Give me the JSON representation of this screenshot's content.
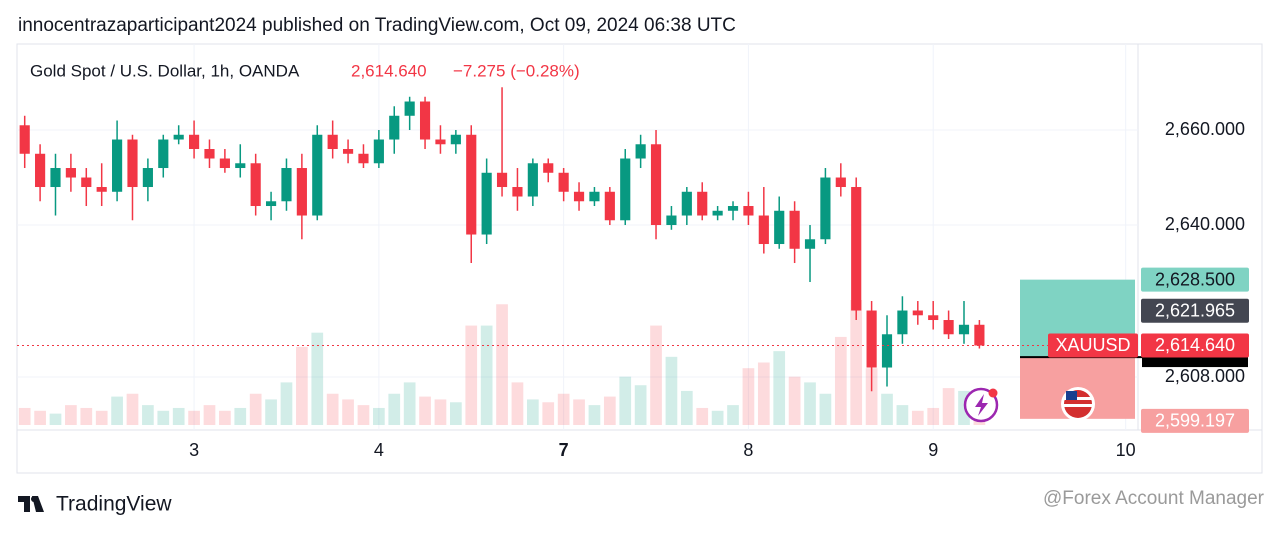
{
  "chart_data": {
    "type": "candlestick",
    "source": "innocentrazaparticipant2024 published on TradingView.com, Oct 09, 2024 06:38 UTC",
    "title": "Gold Spot / U.S. Dollar, 1h, OANDA",
    "change_label": "−7.275 (−0.28%)",
    "brand": "TradingView",
    "watermark": "@Forex Account Manager",
    "up_color": "#089981",
    "down_color": "#f23645",
    "xlim": [
      -0.5,
      72.3
    ],
    "xticks": [
      {
        "value": 11,
        "label": "3"
      },
      {
        "value": 23,
        "label": "4"
      },
      {
        "value": 35,
        "label": "7"
      },
      {
        "value": 47,
        "label": "8"
      },
      {
        "value": 59,
        "label": "9"
      },
      {
        "value": 71.5,
        "label": "10"
      }
    ],
    "ylim": [
      2597.9,
      2678.95
    ],
    "yticks": [
      {
        "value": 2660,
        "label": "2,660.000"
      },
      {
        "value": 2640,
        "label": "2,640.000"
      },
      {
        "value": 2608,
        "label": "2,608.000"
      }
    ],
    "grid": true,
    "open": [
      2661,
      2655,
      2648,
      2652,
      2650,
      2648,
      2647,
      2658,
      2648,
      2652,
      2658,
      2659,
      2656,
      2654,
      2652,
      2653,
      2644,
      2645,
      2652,
      2642,
      2659,
      2656,
      2655,
      2653,
      2658,
      2663,
      2666,
      2658,
      2657,
      2659,
      2638,
      2651,
      2648,
      2646,
      2653,
      2651,
      2647,
      2645,
      2647,
      2641,
      2654,
      2657,
      2640,
      2642,
      2647,
      2642,
      2643,
      2644,
      2642,
      2636,
      2643,
      2635,
      2637,
      2650,
      2648,
      2622,
      2610,
      2617,
      2622,
      2621,
      2620,
      2617,
      2619
    ],
    "high": [
      2663,
      2657,
      2655,
      2655,
      2652,
      2653,
      2662,
      2659,
      2654,
      2659,
      2661,
      2662,
      2658,
      2656,
      2657,
      2655,
      2647,
      2654,
      2655,
      2661,
      2662,
      2658,
      2657,
      2660,
      2665,
      2667,
      2667,
      2661,
      2660,
      2661,
      2654,
      2669,
      2652,
      2654,
      2654,
      2652,
      2649,
      2648,
      2648,
      2656,
      2659,
      2660,
      2644,
      2648,
      2649,
      2644,
      2645,
      2647,
      2648,
      2646,
      2645,
      2640,
      2652,
      2653,
      2650,
      2624,
      2621,
      2625,
      2624,
      2624,
      2622,
      2624,
      2620
    ],
    "low": [
      2652,
      2645,
      2642,
      2647,
      2644,
      2644,
      2645,
      2641,
      2645,
      2650,
      2657,
      2654,
      2652,
      2651,
      2650,
      2642,
      2641,
      2643,
      2637,
      2641,
      2654,
      2653,
      2652,
      2652,
      2655,
      2660,
      2656,
      2655,
      2655,
      2632,
      2636,
      2646,
      2643,
      2644,
      2649,
      2645,
      2643,
      2644,
      2640,
      2640,
      2652,
      2637,
      2639,
      2640,
      2641,
      2641,
      2641,
      2640,
      2634,
      2635,
      2632,
      2628,
      2636,
      2646,
      2620,
      2605,
      2606,
      2615,
      2619,
      2618,
      2616,
      2615,
      2614
    ],
    "close": [
      2655,
      2648,
      2652,
      2650,
      2648,
      2647,
      2658,
      2648,
      2652,
      2658,
      2659,
      2656,
      2654,
      2652,
      2653,
      2644,
      2645,
      2652,
      2642,
      2659,
      2656,
      2655,
      2653,
      2658,
      2663,
      2666,
      2658,
      2657,
      2659,
      2638,
      2651,
      2648,
      2646,
      2653,
      2651,
      2647,
      2645,
      2647,
      2641,
      2654,
      2657,
      2640,
      2642,
      2647,
      2642,
      2643,
      2644,
      2642,
      2636,
      2643,
      2635,
      2637,
      2650,
      2648,
      2622,
      2610,
      2617,
      2622,
      2621,
      2620,
      2617,
      2619,
      2614.64
    ],
    "volume": [
      12,
      10,
      8,
      14,
      12,
      10,
      20,
      22,
      14,
      10,
      12,
      10,
      14,
      10,
      12,
      22,
      18,
      30,
      55,
      65,
      22,
      18,
      14,
      12,
      22,
      30,
      20,
      18,
      16,
      70,
      70,
      85,
      30,
      18,
      16,
      22,
      18,
      14,
      20,
      34,
      28,
      70,
      48,
      24,
      12,
      10,
      14,
      40,
      44,
      52,
      34,
      30,
      22,
      62,
      88,
      40,
      22,
      14,
      10,
      12,
      26,
      24,
      12
    ],
    "last": {
      "symbol": "XAUUSD",
      "value": 2614.64,
      "label": "2,614.640"
    },
    "price_labels": [
      {
        "value": 2621.965,
        "label": "2,621.965"
      }
    ],
    "position": {
      "target": {
        "value": 2628.5,
        "label": "2,628.500"
      },
      "entry": 2612.2,
      "stop": {
        "value": 2599.197,
        "label": "2,599.197"
      }
    }
  }
}
